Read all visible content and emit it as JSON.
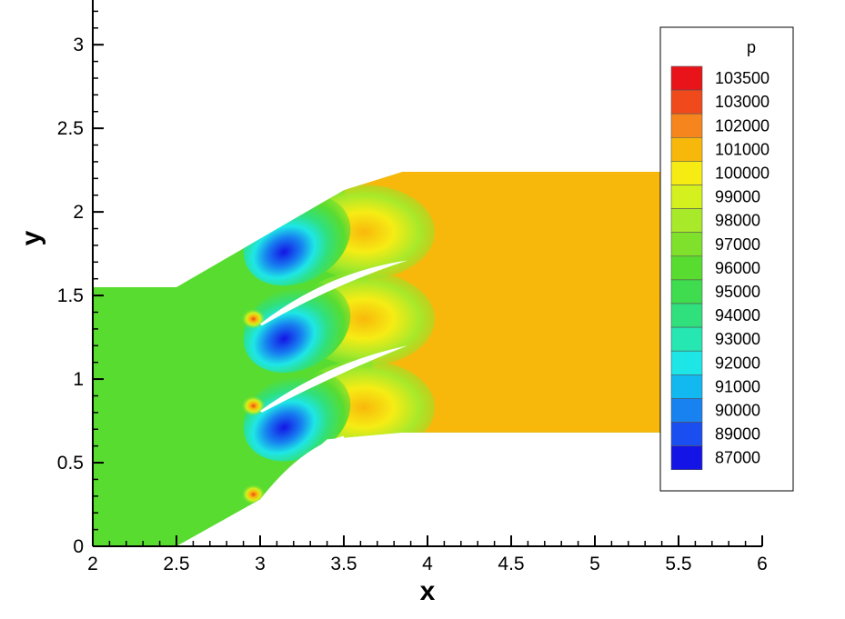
{
  "chart_data": {
    "type": "contour",
    "xlabel": "x",
    "ylabel": "y",
    "xlim": [
      2,
      6
    ],
    "ylim": [
      0,
      3.3
    ],
    "x_ticks": [
      "2",
      "2.5",
      "3",
      "3.5",
      "4",
      "4.5",
      "5",
      "5.5",
      "6"
    ],
    "y_ticks": [
      "0",
      "0.5",
      "1",
      "1.5",
      "2",
      "2.5",
      "3"
    ],
    "grid": false,
    "field": "p",
    "legend": {
      "title": "p",
      "placement": "right",
      "levels": [
        {
          "label": "103500",
          "color": "#e8141a"
        },
        {
          "label": "103000",
          "color": "#f04a1c"
        },
        {
          "label": "102000",
          "color": "#f7851e"
        },
        {
          "label": "101000",
          "color": "#f8b80b"
        },
        {
          "label": "100000",
          "color": "#f6ec14"
        },
        {
          "label": "99000",
          "color": "#d4f01f"
        },
        {
          "label": "98000",
          "color": "#a8e92a"
        },
        {
          "label": "97000",
          "color": "#7fe12c"
        },
        {
          "label": "96000",
          "color": "#58dc30"
        },
        {
          "label": "95000",
          "color": "#3edc4e"
        },
        {
          "label": "94000",
          "color": "#30e07c"
        },
        {
          "label": "93000",
          "color": "#26e6b2"
        },
        {
          "label": "92000",
          "color": "#1ee6e6"
        },
        {
          "label": "91000",
          "color": "#12b8f0"
        },
        {
          "label": "90000",
          "color": "#1782f0"
        },
        {
          "label": "89000",
          "color": "#1a4ef0"
        },
        {
          "label": "87000",
          "color": "#1414e6"
        }
      ]
    },
    "domain_outline": {
      "outer": [
        [
          2,
          0
        ],
        [
          2.5,
          0
        ],
        [
          3,
          0.28
        ],
        [
          3.4,
          0.64
        ],
        [
          3.85,
          0.68
        ],
        [
          5.4,
          0.68
        ],
        [
          5.4,
          2.24
        ],
        [
          3.85,
          2.24
        ],
        [
          3.5,
          2.13
        ],
        [
          2.5,
          1.55
        ],
        [
          2,
          1.55
        ]
      ],
      "blades": [
        {
          "x": [
            3.0,
            3.4,
            3.88
          ],
          "y": [
            0.81,
            1.06,
            1.2
          ]
        },
        {
          "x": [
            3.0,
            3.4,
            3.88
          ],
          "y": [
            1.33,
            1.6,
            1.71
          ]
        }
      ]
    },
    "colors": {
      "inlet_region": "#58dc30",
      "outlet_region": "#f8b80b"
    }
  }
}
